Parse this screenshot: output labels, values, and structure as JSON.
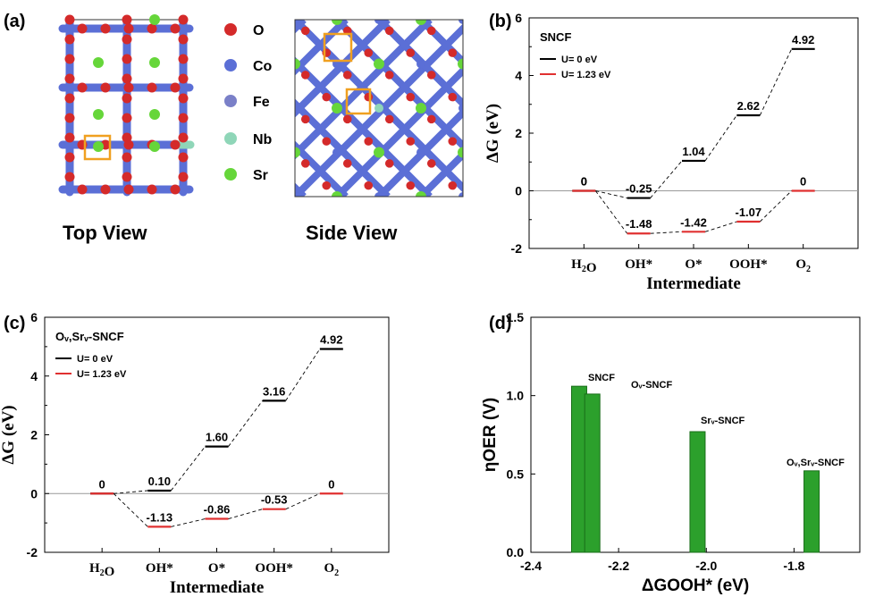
{
  "panel_labels": {
    "a": "(a)",
    "b": "(b)",
    "c": "(c)",
    "d": "(d)"
  },
  "structure": {
    "top_view": "Top View",
    "side_view": "Side View",
    "atoms": [
      {
        "symbol": "O",
        "color": "#d42a2a"
      },
      {
        "symbol": "Co",
        "color": "#5b6fd6"
      },
      {
        "symbol": "Fe",
        "color": "#7a80c8"
      },
      {
        "symbol": "Nb",
        "color": "#8fd6b8"
      },
      {
        "symbol": "Sr",
        "color": "#66d63a"
      }
    ],
    "highlight_color": "#f0a020"
  },
  "colors": {
    "u0": "#000000",
    "u123": "#e03030",
    "bar": "#2ca02c",
    "grid": "#999999"
  },
  "chart_data": [
    {
      "type": "line",
      "panel": "b",
      "title": "SNCF",
      "xlabel": "Intermediate",
      "ylabel": "ΔG (eV)",
      "categories": [
        "H2O",
        "OH*",
        "O*",
        "OOH*",
        "O2"
      ],
      "ylim": [
        -2,
        6
      ],
      "yticks": [
        "-2",
        "0",
        "2",
        "4",
        "6"
      ],
      "series": [
        {
          "name": "U= 0 eV",
          "values": [
            0,
            -0.25,
            1.04,
            2.62,
            4.92
          ],
          "labels": [
            "0",
            "-0.25",
            "1.04",
            "2.62",
            "4.92"
          ]
        },
        {
          "name": "U= 1.23 eV",
          "values": [
            0,
            -1.48,
            -1.42,
            -1.07,
            0
          ],
          "labels": [
            "0",
            "-1.48",
            "-1.42",
            "-1.07",
            "0"
          ]
        }
      ]
    },
    {
      "type": "line",
      "panel": "c",
      "title": "Ov,Srv-SNCF",
      "xlabel": "Intermediate",
      "ylabel": "ΔG (eV)",
      "categories": [
        "H2O",
        "OH*",
        "O*",
        "OOH*",
        "O2"
      ],
      "ylim": [
        -2,
        6
      ],
      "yticks": [
        "-2",
        "0",
        "2",
        "4",
        "6"
      ],
      "series": [
        {
          "name": "U= 0 eV",
          "values": [
            0,
            0.1,
            1.6,
            3.16,
            4.92
          ],
          "labels": [
            "0",
            "0.10",
            "1.60",
            "3.16",
            "4.92"
          ]
        },
        {
          "name": "U= 1.23 eV",
          "values": [
            0,
            -1.13,
            -0.86,
            -0.53,
            0
          ],
          "labels": [
            "",
            "-1.13",
            "-0.86",
            "-0.53",
            "0"
          ]
        }
      ]
    },
    {
      "type": "bar",
      "panel": "d",
      "xlabel": "ΔGOOH* (eV)",
      "ylabel": "ηOER (V)",
      "xlim": [
        -2.4,
        -1.65
      ],
      "ylim": [
        0,
        1.5
      ],
      "xticks": [
        "-2.4",
        "-2.2",
        "-2.0",
        "-1.8"
      ],
      "yticks": [
        "0.0",
        "0.5",
        "1.0",
        "1.5"
      ],
      "bars": [
        {
          "x": -2.29,
          "value": 1.06
        },
        {
          "x": -2.26,
          "value": 1.01
        },
        {
          "x": -2.02,
          "value": 0.77
        },
        {
          "x": -1.76,
          "value": 0.52
        }
      ],
      "annotations": [
        "SNCF",
        "Ov-SNCF",
        "Srv-SNCF",
        "Ov,Srv-SNCF"
      ]
    }
  ]
}
